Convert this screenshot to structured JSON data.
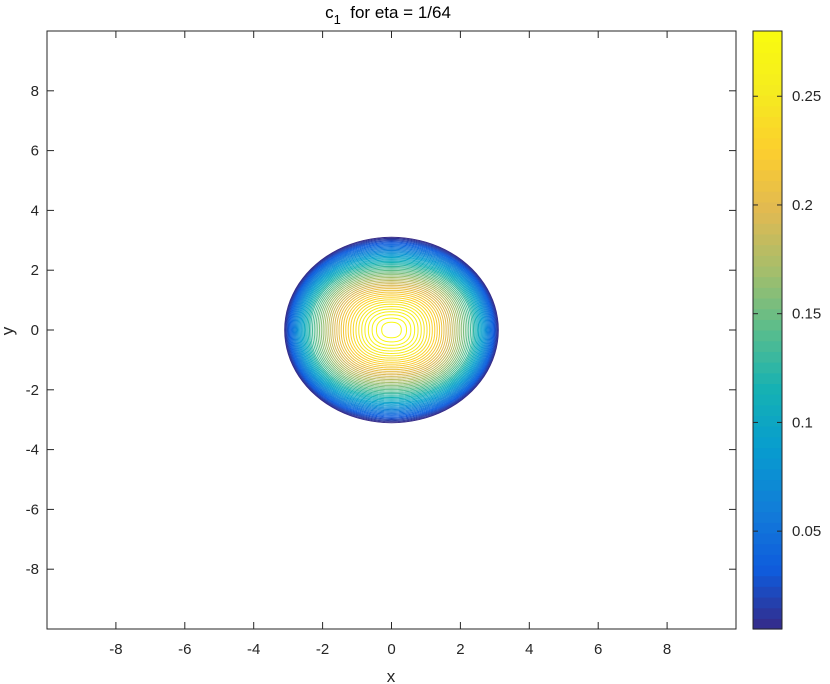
{
  "chart_data": {
    "type": "contour",
    "title": "c",
    "title_subscript": "1",
    "title_suffix": "  for eta = 1/64",
    "xlabel": "x",
    "ylabel": "y",
    "xlim": [
      -10,
      10
    ],
    "ylim": [
      -10,
      10
    ],
    "x_ticks": [
      -8,
      -6,
      -4,
      -2,
      0,
      2,
      4,
      6,
      8
    ],
    "y_ticks": [
      -8,
      -6,
      -4,
      -2,
      0,
      2,
      4,
      6,
      8
    ],
    "grid": false,
    "colormap": "parula",
    "colorbar": {
      "range": [
        0.005,
        0.28
      ],
      "ticks": [
        0.05,
        0.1,
        0.15,
        0.2,
        0.25
      ],
      "tick_labels": [
        "0.05",
        "0.1",
        "0.15",
        "0.2",
        "0.25"
      ]
    },
    "field": {
      "center": [
        0,
        0
      ],
      "peak_value": 0.28,
      "outer_contour_radius": 3.1,
      "x_stretch": 1.1
    },
    "levels": [
      0.005,
      0.01,
      0.015,
      0.02,
      0.025,
      0.03,
      0.035,
      0.04,
      0.045,
      0.05,
      0.055,
      0.06,
      0.065,
      0.07,
      0.075,
      0.08,
      0.085,
      0.09,
      0.095,
      0.1,
      0.105,
      0.11,
      0.115,
      0.12,
      0.125,
      0.13,
      0.135,
      0.14,
      0.145,
      0.15,
      0.155,
      0.16,
      0.165,
      0.17,
      0.175,
      0.18,
      0.185,
      0.19,
      0.195,
      0.2,
      0.205,
      0.21,
      0.215,
      0.22,
      0.225,
      0.23,
      0.235,
      0.24,
      0.245,
      0.25,
      0.255,
      0.26,
      0.265,
      0.27,
      0.275
    ]
  }
}
